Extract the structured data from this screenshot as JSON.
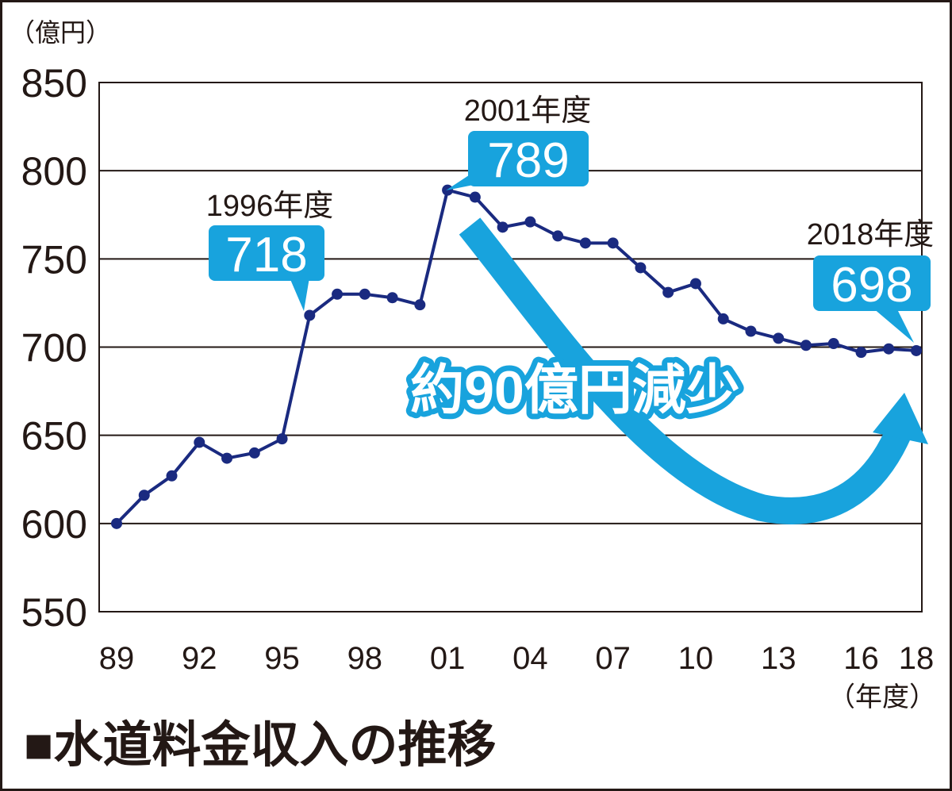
{
  "chart_data": {
    "type": "line",
    "title": "■水道料金収入の推移",
    "ylabel": "（億円）",
    "xlabel": "（年度）",
    "ylim": [
      550,
      850
    ],
    "yticks": [
      550,
      600,
      650,
      700,
      750,
      800,
      850
    ],
    "grid": true,
    "x": [
      "89",
      "90",
      "91",
      "92",
      "93",
      "94",
      "95",
      "96",
      "97",
      "98",
      "99",
      "00",
      "01",
      "02",
      "03",
      "04",
      "05",
      "06",
      "07",
      "08",
      "09",
      "10",
      "11",
      "12",
      "13",
      "14",
      "15",
      "16",
      "17",
      "18"
    ],
    "xtick_labels": [
      "89",
      "92",
      "95",
      "98",
      "01",
      "04",
      "07",
      "10",
      "13",
      "16",
      "18"
    ],
    "series": [
      {
        "values": [
          600,
          616,
          627,
          646,
          637,
          640,
          648,
          718,
          730,
          730,
          728,
          724,
          789,
          785,
          768,
          771,
          763,
          759,
          759,
          745,
          731,
          736,
          716,
          709,
          705,
          701,
          702,
          697,
          699,
          698
        ]
      }
    ],
    "annotations": [
      {
        "label": "1996年度",
        "value": "718",
        "x": "96"
      },
      {
        "label": "2001年度",
        "value": "789",
        "x": "01"
      },
      {
        "label": "2018年度",
        "value": "698",
        "x": "18"
      }
    ],
    "arrow_text": "約90億円減少"
  },
  "colors": {
    "line": "#1a2a80",
    "accent": "#18a3dd",
    "grid": "#231815"
  }
}
